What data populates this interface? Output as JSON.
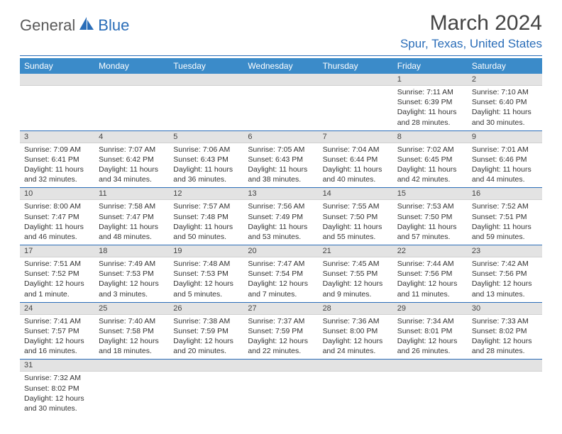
{
  "logo": {
    "part1": "General",
    "part2": "Blue"
  },
  "title": "March 2024",
  "location": "Spur, Texas, United States",
  "colors": {
    "header_bg": "#3b8bc9",
    "accent": "#2a6db8",
    "daynum_bg": "#e3e3e3",
    "text": "#333333",
    "logo_gray": "#5a5a5a"
  },
  "weekdays": [
    "Sunday",
    "Monday",
    "Tuesday",
    "Wednesday",
    "Thursday",
    "Friday",
    "Saturday"
  ],
  "weeks": [
    [
      {
        "empty": true
      },
      {
        "empty": true
      },
      {
        "empty": true
      },
      {
        "empty": true
      },
      {
        "empty": true
      },
      {
        "num": "1",
        "sunrise": "7:11 AM",
        "sunset": "6:39 PM",
        "daylight": "11 hours and 28 minutes."
      },
      {
        "num": "2",
        "sunrise": "7:10 AM",
        "sunset": "6:40 PM",
        "daylight": "11 hours and 30 minutes."
      }
    ],
    [
      {
        "num": "3",
        "sunrise": "7:09 AM",
        "sunset": "6:41 PM",
        "daylight": "11 hours and 32 minutes."
      },
      {
        "num": "4",
        "sunrise": "7:07 AM",
        "sunset": "6:42 PM",
        "daylight": "11 hours and 34 minutes."
      },
      {
        "num": "5",
        "sunrise": "7:06 AM",
        "sunset": "6:43 PM",
        "daylight": "11 hours and 36 minutes."
      },
      {
        "num": "6",
        "sunrise": "7:05 AM",
        "sunset": "6:43 PM",
        "daylight": "11 hours and 38 minutes."
      },
      {
        "num": "7",
        "sunrise": "7:04 AM",
        "sunset": "6:44 PM",
        "daylight": "11 hours and 40 minutes."
      },
      {
        "num": "8",
        "sunrise": "7:02 AM",
        "sunset": "6:45 PM",
        "daylight": "11 hours and 42 minutes."
      },
      {
        "num": "9",
        "sunrise": "7:01 AM",
        "sunset": "6:46 PM",
        "daylight": "11 hours and 44 minutes."
      }
    ],
    [
      {
        "num": "10",
        "sunrise": "8:00 AM",
        "sunset": "7:47 PM",
        "daylight": "11 hours and 46 minutes."
      },
      {
        "num": "11",
        "sunrise": "7:58 AM",
        "sunset": "7:47 PM",
        "daylight": "11 hours and 48 minutes."
      },
      {
        "num": "12",
        "sunrise": "7:57 AM",
        "sunset": "7:48 PM",
        "daylight": "11 hours and 50 minutes."
      },
      {
        "num": "13",
        "sunrise": "7:56 AM",
        "sunset": "7:49 PM",
        "daylight": "11 hours and 53 minutes."
      },
      {
        "num": "14",
        "sunrise": "7:55 AM",
        "sunset": "7:50 PM",
        "daylight": "11 hours and 55 minutes."
      },
      {
        "num": "15",
        "sunrise": "7:53 AM",
        "sunset": "7:50 PM",
        "daylight": "11 hours and 57 minutes."
      },
      {
        "num": "16",
        "sunrise": "7:52 AM",
        "sunset": "7:51 PM",
        "daylight": "11 hours and 59 minutes."
      }
    ],
    [
      {
        "num": "17",
        "sunrise": "7:51 AM",
        "sunset": "7:52 PM",
        "daylight": "12 hours and 1 minute."
      },
      {
        "num": "18",
        "sunrise": "7:49 AM",
        "sunset": "7:53 PM",
        "daylight": "12 hours and 3 minutes."
      },
      {
        "num": "19",
        "sunrise": "7:48 AM",
        "sunset": "7:53 PM",
        "daylight": "12 hours and 5 minutes."
      },
      {
        "num": "20",
        "sunrise": "7:47 AM",
        "sunset": "7:54 PM",
        "daylight": "12 hours and 7 minutes."
      },
      {
        "num": "21",
        "sunrise": "7:45 AM",
        "sunset": "7:55 PM",
        "daylight": "12 hours and 9 minutes."
      },
      {
        "num": "22",
        "sunrise": "7:44 AM",
        "sunset": "7:56 PM",
        "daylight": "12 hours and 11 minutes."
      },
      {
        "num": "23",
        "sunrise": "7:42 AM",
        "sunset": "7:56 PM",
        "daylight": "12 hours and 13 minutes."
      }
    ],
    [
      {
        "num": "24",
        "sunrise": "7:41 AM",
        "sunset": "7:57 PM",
        "daylight": "12 hours and 16 minutes."
      },
      {
        "num": "25",
        "sunrise": "7:40 AM",
        "sunset": "7:58 PM",
        "daylight": "12 hours and 18 minutes."
      },
      {
        "num": "26",
        "sunrise": "7:38 AM",
        "sunset": "7:59 PM",
        "daylight": "12 hours and 20 minutes."
      },
      {
        "num": "27",
        "sunrise": "7:37 AM",
        "sunset": "7:59 PM",
        "daylight": "12 hours and 22 minutes."
      },
      {
        "num": "28",
        "sunrise": "7:36 AM",
        "sunset": "8:00 PM",
        "daylight": "12 hours and 24 minutes."
      },
      {
        "num": "29",
        "sunrise": "7:34 AM",
        "sunset": "8:01 PM",
        "daylight": "12 hours and 26 minutes."
      },
      {
        "num": "30",
        "sunrise": "7:33 AM",
        "sunset": "8:02 PM",
        "daylight": "12 hours and 28 minutes."
      }
    ],
    [
      {
        "num": "31",
        "sunrise": "7:32 AM",
        "sunset": "8:02 PM",
        "daylight": "12 hours and 30 minutes."
      },
      {
        "empty": true
      },
      {
        "empty": true
      },
      {
        "empty": true
      },
      {
        "empty": true
      },
      {
        "empty": true
      },
      {
        "empty": true
      }
    ]
  ],
  "labels": {
    "sunrise": "Sunrise:",
    "sunset": "Sunset:",
    "daylight": "Daylight:"
  }
}
